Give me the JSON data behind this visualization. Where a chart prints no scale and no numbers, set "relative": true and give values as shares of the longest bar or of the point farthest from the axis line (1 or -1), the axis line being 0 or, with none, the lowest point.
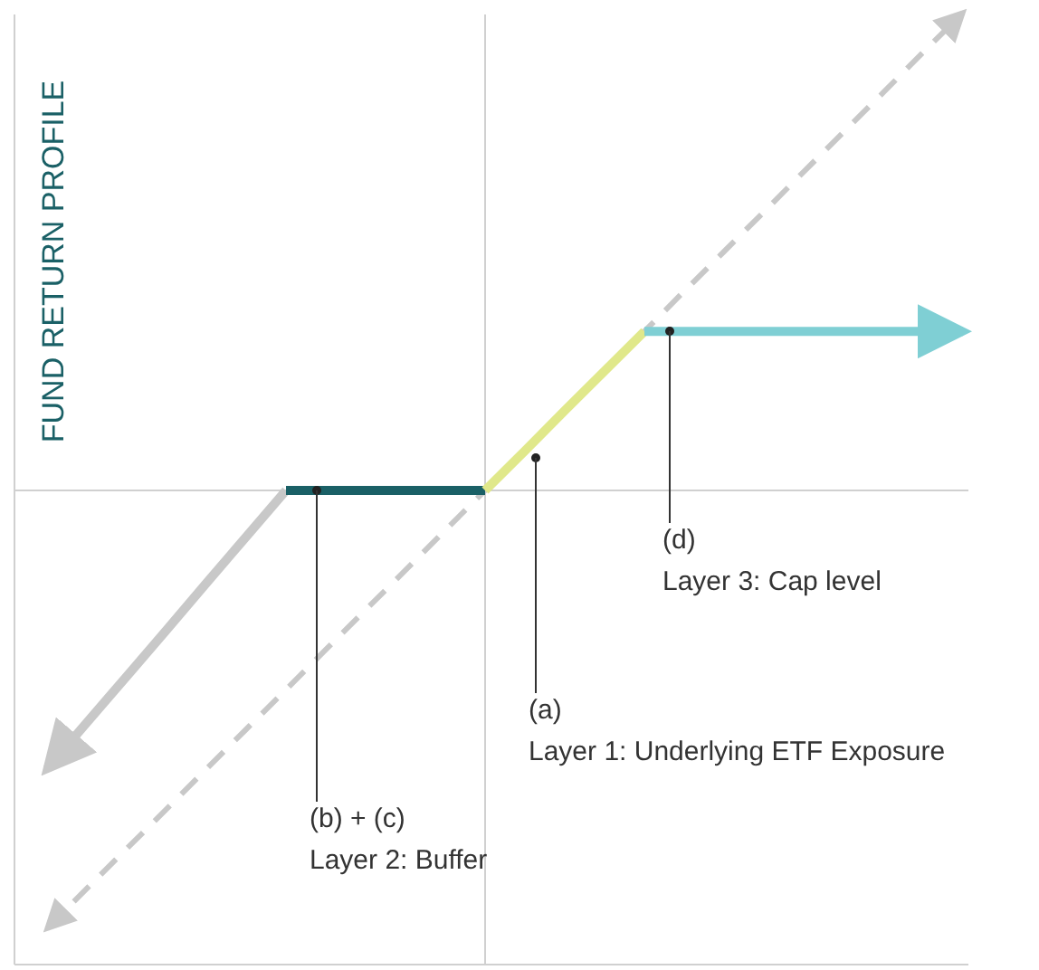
{
  "chart_data": {
    "type": "line",
    "relative": true,
    "ylabel": "FUND RETURN PROFILE",
    "marker": "none",
    "categories": [
      null,
      null,
      null,
      null,
      null,
      null,
      null,
      null,
      null,
      null,
      null,
      null,
      null,
      null,
      null,
      null,
      null,
      null,
      null,
      null,
      null,
      null,
      null,
      null
    ],
    "series": [
      {
        "color": "#c8c8c8",
        "line_style": "dashed",
        "values": [
          -0.917,
          -0.833,
          -0.75,
          -0.667,
          -0.583,
          -0.5,
          -0.417,
          -0.333,
          -0.25,
          -0.167,
          -0.083,
          0,
          0.083,
          0.167,
          0.25,
          0.333,
          0.417,
          0.5,
          0.583,
          0.667,
          0.75,
          0.833,
          0.917,
          1
        ]
      },
      {
        "color": "#c8c8c8",
        "line_style": "solid",
        "values": [
          -0.583,
          -0.486,
          -0.389,
          -0.292,
          -0.194,
          -0.097,
          0,
          null,
          null,
          null,
          null,
          null,
          null,
          null,
          null,
          null,
          null,
          null,
          null,
          null,
          null,
          null,
          null,
          null
        ]
      },
      {
        "color": "#1a6066",
        "line_style": "solid",
        "values": [
          null,
          null,
          null,
          null,
          null,
          null,
          0,
          0,
          0,
          0,
          0,
          0,
          null,
          null,
          null,
          null,
          null,
          null,
          null,
          null,
          null,
          null,
          null,
          null
        ]
      },
      {
        "color": "#e0e88a",
        "line_style": "solid",
        "values": [
          null,
          null,
          null,
          null,
          null,
          null,
          null,
          null,
          null,
          null,
          null,
          0,
          0.083,
          0.167,
          0.25,
          0.333,
          null,
          null,
          null,
          null,
          null,
          null,
          null,
          null
        ]
      },
      {
        "color": "#7fcfd4",
        "line_style": "solid",
        "values": [
          null,
          null,
          null,
          null,
          null,
          null,
          null,
          null,
          null,
          null,
          null,
          null,
          null,
          null,
          null,
          0.333,
          0.333,
          0.333,
          0.333,
          0.333,
          0.333,
          0.333,
          0.333,
          0.333
        ]
      }
    ],
    "annotations": [
      "(a)\nLayer 1: Underlying ETF Exposure",
      "(b) + (c)\nLayer 2: Buffer",
      "(d)\nLayer 3: Cap level"
    ]
  }
}
